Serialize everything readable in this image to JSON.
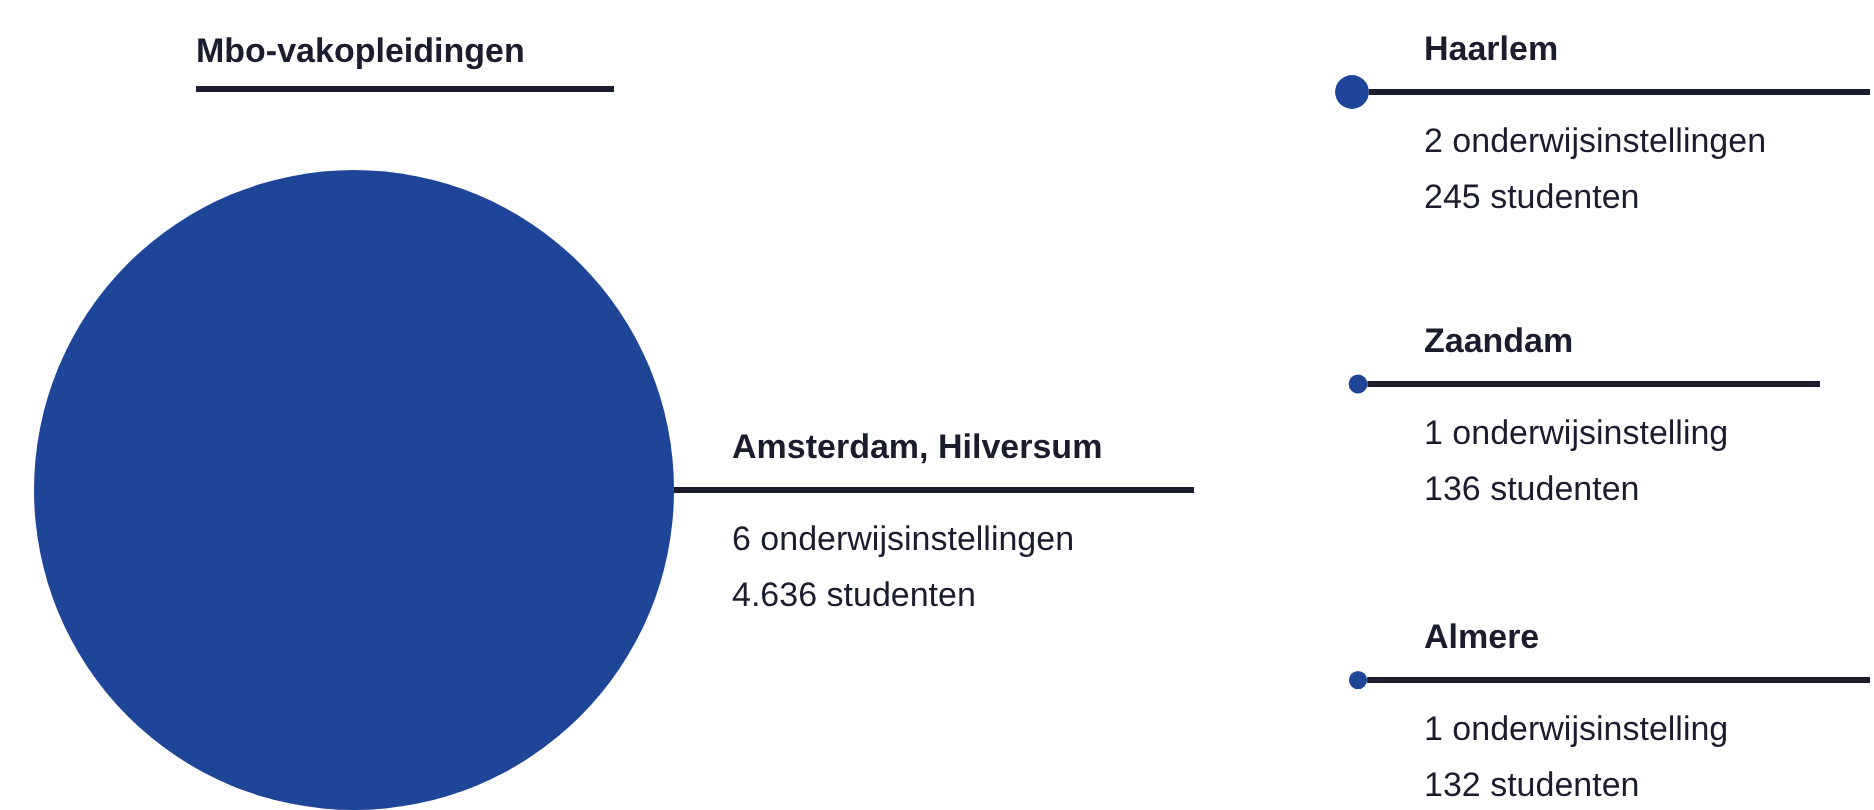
{
  "chart_data": {
    "type": "other",
    "title": "Mbo-vakopleidingen",
    "color": "#1f4599",
    "categories": [
      "Amsterdam, Hilversum",
      "Haarlem",
      "Zaandam",
      "Almere"
    ],
    "values": [
      4636,
      245,
      136,
      132
    ],
    "value_labels": [
      "4.636 studenten",
      "245 studenten",
      "136 studenten",
      "132 studenten"
    ],
    "annotations": [
      "6 onderwijsinstellingen",
      "2 onderwijsinstellingen",
      "1 onderwijsinstelling",
      "1 onderwijsinstelling"
    ]
  }
}
